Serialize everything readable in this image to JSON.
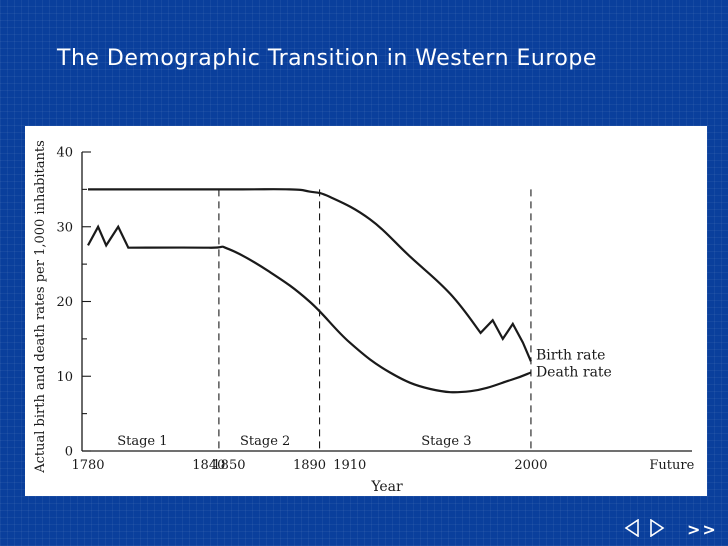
{
  "slide": {
    "title": "The Demographic Transition in Western Europe",
    "nav_next_label": ">>"
  },
  "icons": {
    "prev": "triangle-left-icon",
    "next": "triangle-right-icon"
  },
  "colors": {
    "background": "#0a3f9c",
    "panel": "#ffffff",
    "line": "#1a1a1a"
  },
  "chart_data": {
    "type": "line",
    "title": "",
    "xlabel": "Year",
    "ylabel": "Actual birth and death rates per 1,000 inhabitants",
    "ylim": [
      0,
      40
    ],
    "yticks": [
      0,
      10,
      20,
      30,
      40
    ],
    "x_ticks": [
      "1780",
      "1840",
      "1850",
      "1890",
      "1910",
      "2000",
      "Future"
    ],
    "x_ticks_numeric": [
      1780,
      1840,
      1850,
      1890,
      1910,
      2000,
      2070
    ],
    "xlim": [
      1777,
      2080
    ],
    "grid": false,
    "series": [
      {
        "name": "Birth rate",
        "x": [
          1780,
          1850,
          1880,
          1890,
          1900,
          1920,
          1940,
          1960,
          1975,
          1981,
          1986,
          1991,
          1996,
          2000
        ],
        "values": [
          35,
          35,
          35,
          34.7,
          34,
          31,
          26,
          21,
          15.8,
          17.5,
          15,
          17,
          14.5,
          12
        ]
      },
      {
        "name": "Death rate",
        "x": [
          1780,
          1785,
          1789,
          1795,
          1800,
          1840,
          1850,
          1870,
          1890,
          1910,
          1930,
          1950,
          1970,
          1990,
          2000
        ],
        "values": [
          27.5,
          30,
          27.5,
          30,
          27.2,
          27.2,
          27,
          24,
          20,
          14.5,
          10.5,
          8.3,
          8,
          9.5,
          10.5
        ]
      }
    ],
    "stage_dividers": [
      1845,
      1895,
      2000
    ],
    "stages": [
      {
        "label": "Stage 1",
        "center": 1807
      },
      {
        "label": "Stage 2",
        "center": 1868
      },
      {
        "label": "Stage 3",
        "center": 1958
      }
    ],
    "legend_position": "right"
  }
}
